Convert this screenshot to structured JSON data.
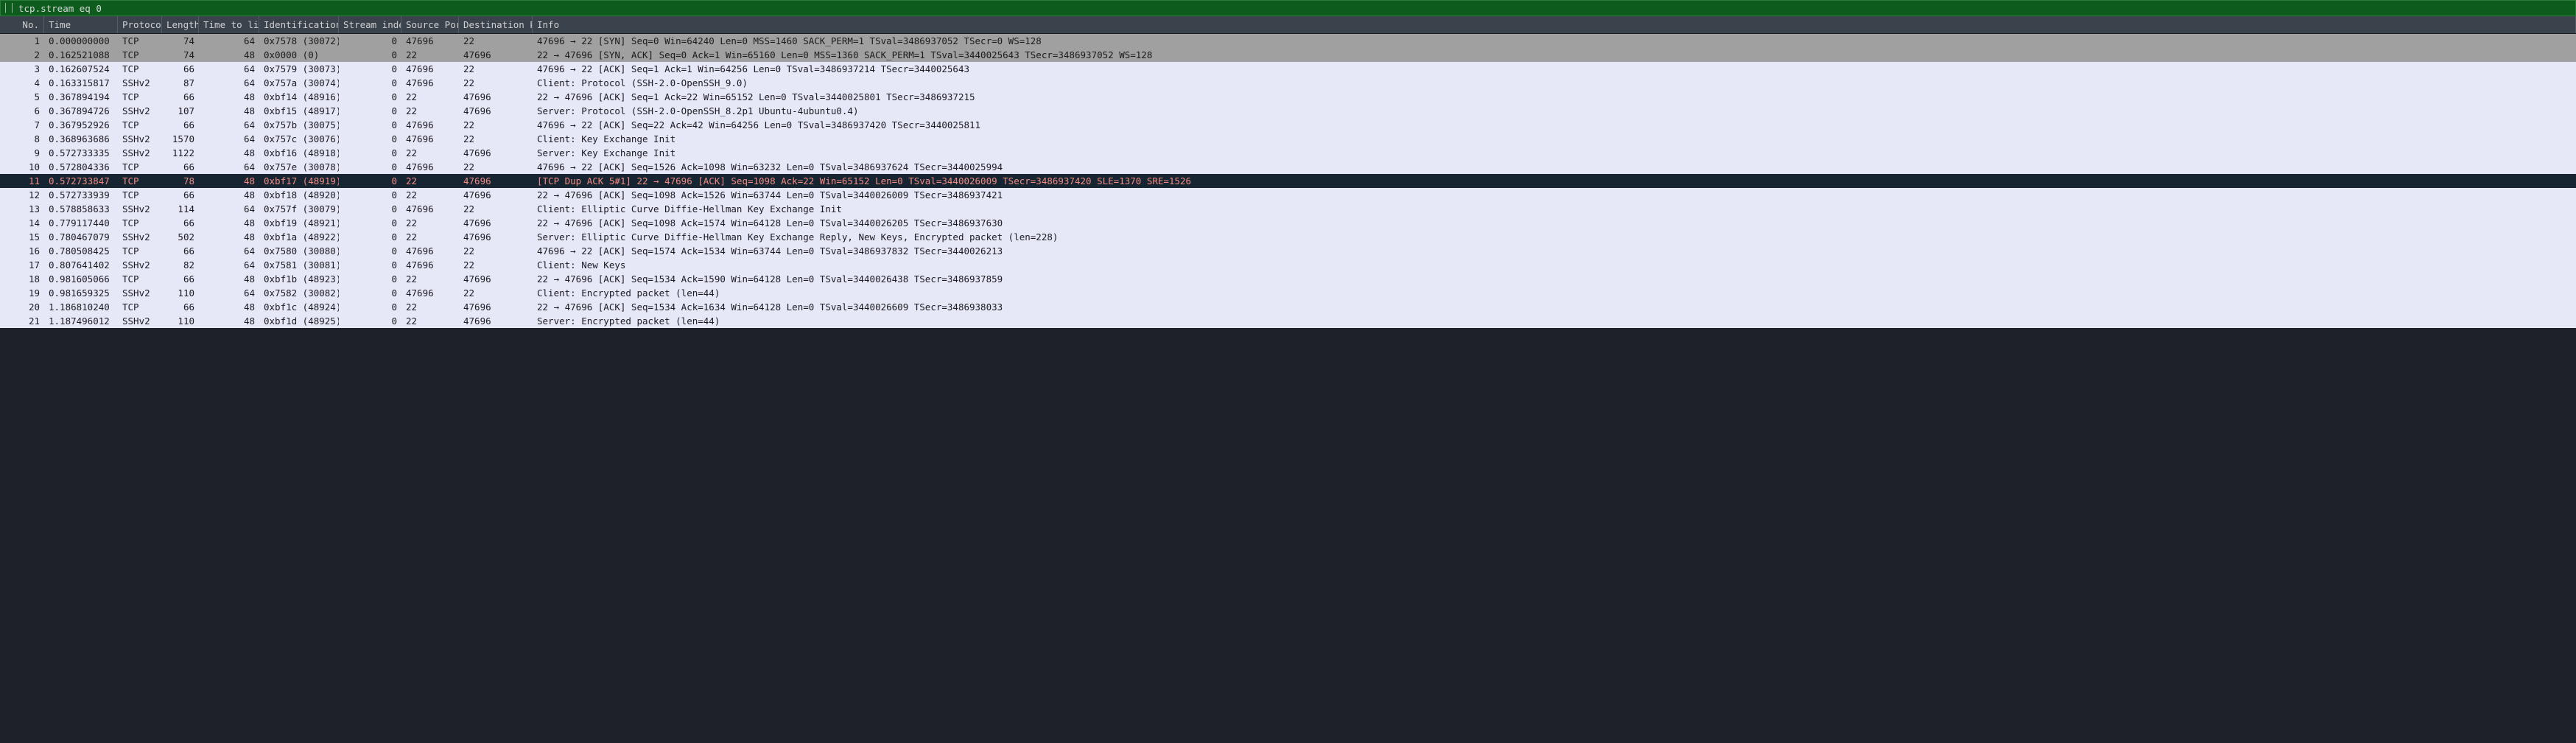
{
  "filter": {
    "value": "tcp.stream eq 0"
  },
  "colors": {
    "row_bg": "#e7e8f7",
    "row_fg": "#1a1a22",
    "gray_row_bg": "#a0a0a0",
    "gray_row_fg": "#1a1a1a",
    "selected_bg": "#172533",
    "selected_fg": "#f28b82",
    "header_bg": "#3a424c",
    "filter_bg": "#0d5c1e"
  },
  "columns": [
    {
      "key": "no",
      "label": "No.",
      "class": "c-no"
    },
    {
      "key": "time",
      "label": "Time",
      "class": "c-time"
    },
    {
      "key": "proto",
      "label": "Protocol",
      "class": "c-proto"
    },
    {
      "key": "len",
      "label": "Length",
      "class": "c-len"
    },
    {
      "key": "ttl",
      "label": "Time to live",
      "class": "c-ttl"
    },
    {
      "key": "ident",
      "label": "Identification",
      "class": "c-ident"
    },
    {
      "key": "sidx",
      "label": "Stream index",
      "class": "c-sidx"
    },
    {
      "key": "sport",
      "label": "Source Port",
      "class": "c-sport"
    },
    {
      "key": "dport",
      "label": "Destination Port",
      "class": "c-dport"
    },
    {
      "key": "info",
      "label": "Info",
      "class": "c-info"
    }
  ],
  "rows": [
    {
      "no": "1",
      "time": "0.000000000",
      "proto": "TCP",
      "len": "74",
      "ttl": "64",
      "ident": "0x7578 (30072)",
      "sidx": "0",
      "sport": "47696",
      "dport": "22",
      "info": "47696 → 22 [SYN] Seq=0 Win=64240 Len=0 MSS=1460 SACK_PERM=1 TSval=3486937052 TSecr=0 WS=128",
      "style": "gray"
    },
    {
      "no": "2",
      "time": "0.162521088",
      "proto": "TCP",
      "len": "74",
      "ttl": "48",
      "ident": "0x0000 (0)",
      "sidx": "0",
      "sport": "22",
      "dport": "47696",
      "info": "22 → 47696 [SYN, ACK] Seq=0 Ack=1 Win=65160 Len=0 MSS=1360 SACK_PERM=1 TSval=3440025643 TSecr=3486937052 WS=128",
      "style": "gray"
    },
    {
      "no": "3",
      "time": "0.162607524",
      "proto": "TCP",
      "len": "66",
      "ttl": "64",
      "ident": "0x7579 (30073)",
      "sidx": "0",
      "sport": "47696",
      "dport": "22",
      "info": "47696 → 22 [ACK] Seq=1 Ack=1 Win=64256 Len=0 TSval=3486937214 TSecr=3440025643",
      "style": "normal"
    },
    {
      "no": "4",
      "time": "0.163315817",
      "proto": "SSHv2",
      "len": "87",
      "ttl": "64",
      "ident": "0x757a (30074)",
      "sidx": "0",
      "sport": "47696",
      "dport": "22",
      "info": "Client: Protocol (SSH-2.0-OpenSSH_9.0)",
      "style": "normal"
    },
    {
      "no": "5",
      "time": "0.367894194",
      "proto": "TCP",
      "len": "66",
      "ttl": "48",
      "ident": "0xbf14 (48916)",
      "sidx": "0",
      "sport": "22",
      "dport": "47696",
      "info": "22 → 47696 [ACK] Seq=1 Ack=22 Win=65152 Len=0 TSval=3440025801 TSecr=3486937215",
      "style": "normal"
    },
    {
      "no": "6",
      "time": "0.367894726",
      "proto": "SSHv2",
      "len": "107",
      "ttl": "48",
      "ident": "0xbf15 (48917)",
      "sidx": "0",
      "sport": "22",
      "dport": "47696",
      "info": "Server: Protocol (SSH-2.0-OpenSSH_8.2p1 Ubuntu-4ubuntu0.4)",
      "style": "normal"
    },
    {
      "no": "7",
      "time": "0.367952926",
      "proto": "TCP",
      "len": "66",
      "ttl": "64",
      "ident": "0x757b (30075)",
      "sidx": "0",
      "sport": "47696",
      "dport": "22",
      "info": "47696 → 22 [ACK] Seq=22 Ack=42 Win=64256 Len=0 TSval=3486937420 TSecr=3440025811",
      "style": "normal"
    },
    {
      "no": "8",
      "time": "0.368963686",
      "proto": "SSHv2",
      "len": "1570",
      "ttl": "64",
      "ident": "0x757c (30076)",
      "sidx": "0",
      "sport": "47696",
      "dport": "22",
      "info": "Client: Key Exchange Init",
      "style": "normal"
    },
    {
      "no": "9",
      "time": "0.572733335",
      "proto": "SSHv2",
      "len": "1122",
      "ttl": "48",
      "ident": "0xbf16 (48918)",
      "sidx": "0",
      "sport": "22",
      "dport": "47696",
      "info": "Server: Key Exchange Init",
      "style": "normal"
    },
    {
      "no": "10",
      "time": "0.572804336",
      "proto": "TCP",
      "len": "66",
      "ttl": "64",
      "ident": "0x757e (30078)",
      "sidx": "0",
      "sport": "47696",
      "dport": "22",
      "info": "47696 → 22 [ACK] Seq=1526 Ack=1098 Win=63232 Len=0 TSval=3486937624 TSecr=3440025994",
      "style": "normal"
    },
    {
      "no": "11",
      "time": "0.572733847",
      "proto": "TCP",
      "len": "78",
      "ttl": "48",
      "ident": "0xbf17 (48919)",
      "sidx": "0",
      "sport": "22",
      "dport": "47696",
      "info": "[TCP Dup ACK 5#1] 22 → 47696 [ACK] Seq=1098 Ack=22 Win=65152 Len=0 TSval=3440026009 TSecr=3486937420 SLE=1370 SRE=1526",
      "style": "selected"
    },
    {
      "no": "12",
      "time": "0.572733939",
      "proto": "TCP",
      "len": "66",
      "ttl": "48",
      "ident": "0xbf18 (48920)",
      "sidx": "0",
      "sport": "22",
      "dport": "47696",
      "info": "22 → 47696 [ACK] Seq=1098 Ack=1526 Win=63744 Len=0 TSval=3440026009 TSecr=3486937421",
      "style": "normal"
    },
    {
      "no": "13",
      "time": "0.578858633",
      "proto": "SSHv2",
      "len": "114",
      "ttl": "64",
      "ident": "0x757f (30079)",
      "sidx": "0",
      "sport": "47696",
      "dport": "22",
      "info": "Client: Elliptic Curve Diffie-Hellman Key Exchange Init",
      "style": "normal"
    },
    {
      "no": "14",
      "time": "0.779117440",
      "proto": "TCP",
      "len": "66",
      "ttl": "48",
      "ident": "0xbf19 (48921)",
      "sidx": "0",
      "sport": "22",
      "dport": "47696",
      "info": "22 → 47696 [ACK] Seq=1098 Ack=1574 Win=64128 Len=0 TSval=3440026205 TSecr=3486937630",
      "style": "normal"
    },
    {
      "no": "15",
      "time": "0.780467079",
      "proto": "SSHv2",
      "len": "502",
      "ttl": "48",
      "ident": "0xbf1a (48922)",
      "sidx": "0",
      "sport": "22",
      "dport": "47696",
      "info": "Server: Elliptic Curve Diffie-Hellman Key Exchange Reply, New Keys, Encrypted packet (len=228)",
      "style": "normal"
    },
    {
      "no": "16",
      "time": "0.780508425",
      "proto": "TCP",
      "len": "66",
      "ttl": "64",
      "ident": "0x7580 (30080)",
      "sidx": "0",
      "sport": "47696",
      "dport": "22",
      "info": "47696 → 22 [ACK] Seq=1574 Ack=1534 Win=63744 Len=0 TSval=3486937832 TSecr=3440026213",
      "style": "normal"
    },
    {
      "no": "17",
      "time": "0.807641402",
      "proto": "SSHv2",
      "len": "82",
      "ttl": "64",
      "ident": "0x7581 (30081)",
      "sidx": "0",
      "sport": "47696",
      "dport": "22",
      "info": "Client: New Keys",
      "style": "normal"
    },
    {
      "no": "18",
      "time": "0.981605066",
      "proto": "TCP",
      "len": "66",
      "ttl": "48",
      "ident": "0xbf1b (48923)",
      "sidx": "0",
      "sport": "22",
      "dport": "47696",
      "info": "22 → 47696 [ACK] Seq=1534 Ack=1590 Win=64128 Len=0 TSval=3440026438 TSecr=3486937859",
      "style": "normal"
    },
    {
      "no": "19",
      "time": "0.981659325",
      "proto": "SSHv2",
      "len": "110",
      "ttl": "64",
      "ident": "0x7582 (30082)",
      "sidx": "0",
      "sport": "47696",
      "dport": "22",
      "info": "Client: Encrypted packet (len=44)",
      "style": "normal"
    },
    {
      "no": "20",
      "time": "1.186810240",
      "proto": "TCP",
      "len": "66",
      "ttl": "48",
      "ident": "0xbf1c (48924)",
      "sidx": "0",
      "sport": "22",
      "dport": "47696",
      "info": "22 → 47696 [ACK] Seq=1534 Ack=1634 Win=64128 Len=0 TSval=3440026609 TSecr=3486938033",
      "style": "normal"
    },
    {
      "no": "21",
      "time": "1.187496012",
      "proto": "SSHv2",
      "len": "110",
      "ttl": "48",
      "ident": "0xbf1d (48925)",
      "sidx": "0",
      "sport": "22",
      "dport": "47696",
      "info": "Server: Encrypted packet (len=44)",
      "style": "normal"
    }
  ]
}
